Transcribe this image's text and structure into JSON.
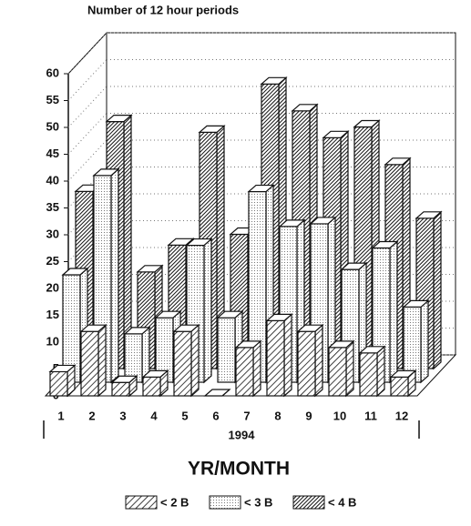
{
  "chart_data": {
    "type": "bar3d",
    "title": "Number of 12 hour periods",
    "subtitle": "1994",
    "x_label": "YR/MONTH",
    "categories": [
      "1",
      "2",
      "3",
      "4",
      "5",
      "6",
      "7",
      "8",
      "9",
      "10",
      "11",
      "12"
    ],
    "series": [
      {
        "name": "< 2 B",
        "color": "#ffffff",
        "values": [
          4.5,
          12,
          2.5,
          3.5,
          12,
          0,
          9,
          14,
          12,
          9,
          8,
          3.5
        ]
      },
      {
        "name": "< 3 B",
        "color": "#e8e8e8",
        "values": [
          20,
          38.5,
          9,
          12,
          25.5,
          12,
          35.5,
          29,
          29.5,
          21,
          25,
          14
        ]
      },
      {
        "name": "< 4 B",
        "color": "#555555",
        "values": [
          33,
          46,
          18,
          23,
          44,
          25,
          53,
          48,
          43,
          45,
          38,
          28
        ]
      }
    ],
    "ylim": [
      0,
      60
    ],
    "yticks": [
      0,
      5,
      10,
      15,
      20,
      25,
      30,
      35,
      40,
      45,
      50,
      55,
      60
    ],
    "grid": true
  }
}
